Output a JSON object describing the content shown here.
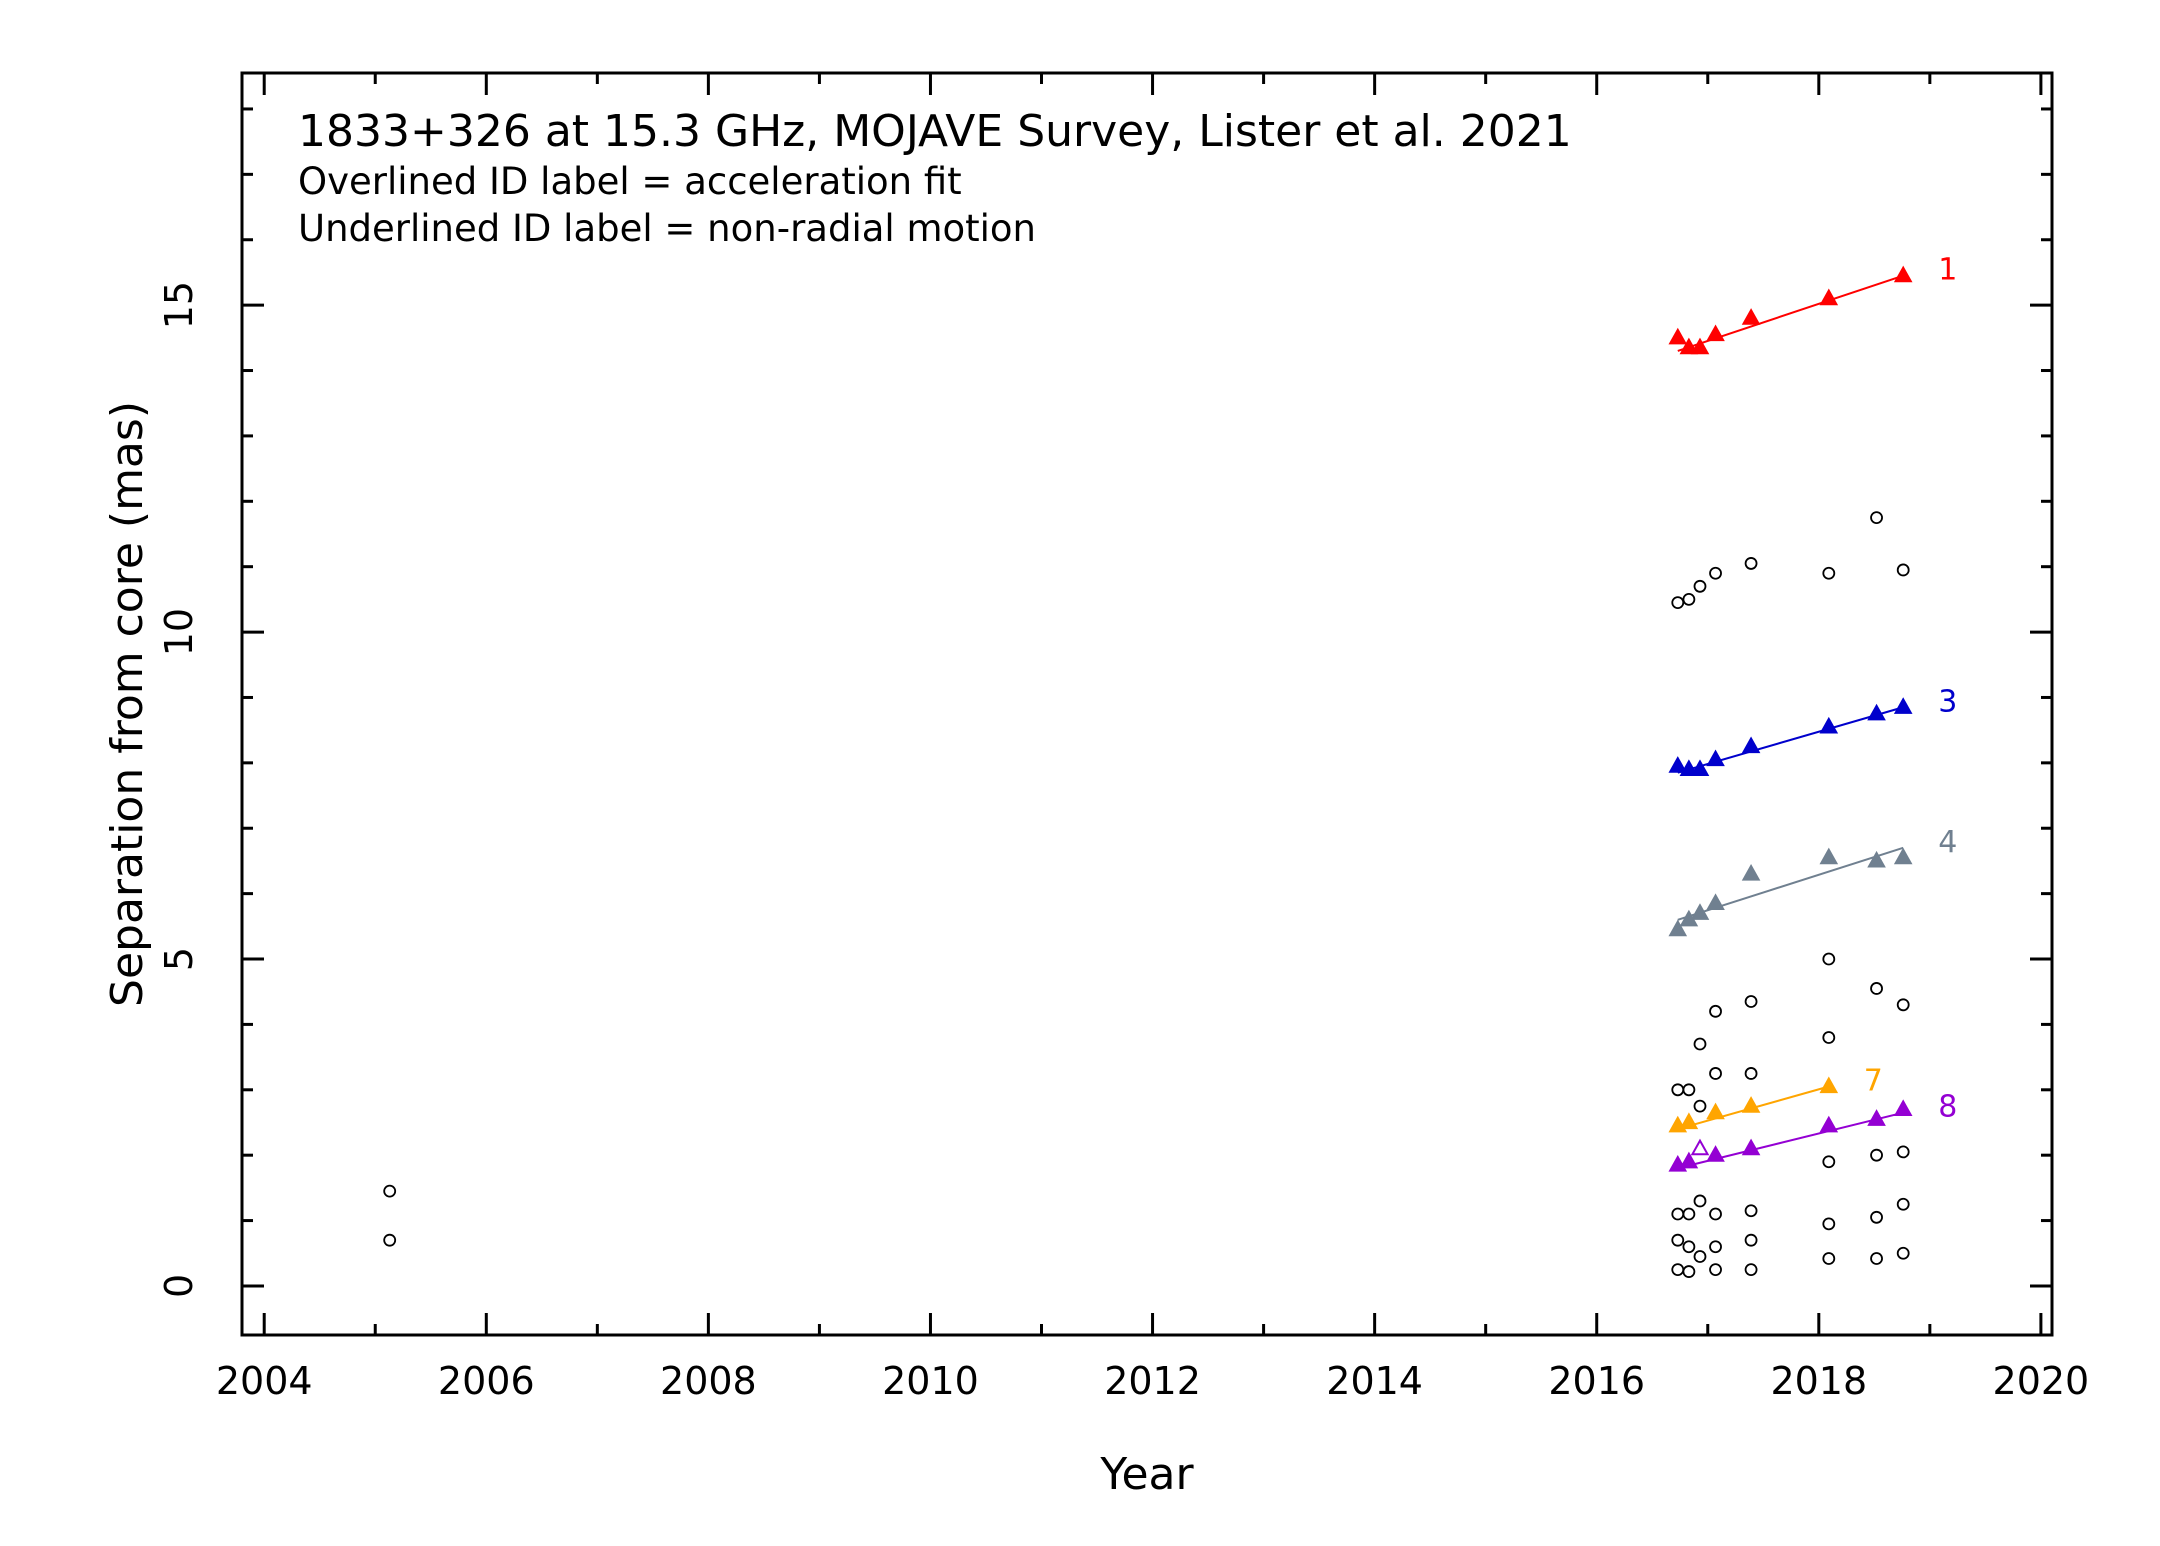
{
  "chart_data": {
    "type": "scatter",
    "title": "1833+326 at 15.3 GHz, MOJAVE Survey, Lister et al. 2021",
    "annotations": [
      "Overlined ID label = acceleration fit",
      "Underlined ID label = non-radial motion"
    ],
    "xlabel": "Year",
    "ylabel": "Separation from core (mas)",
    "xlim": [
      2003.8,
      2020.1
    ],
    "ylim": [
      -0.75,
      18.55
    ],
    "xticks": [
      2004,
      2006,
      2008,
      2010,
      2012,
      2014,
      2016,
      2018,
      2020
    ],
    "yticks": [
      0,
      5,
      10,
      15
    ],
    "x_minor_step": 1,
    "y_minor_step": 1,
    "grid": false,
    "series": [
      {
        "name": "1",
        "color": "#ff0000",
        "marker": "filled-triangle",
        "x": [
          2016.73,
          2016.83,
          2016.93,
          2017.07,
          2017.39,
          2018.09,
          2018.76
        ],
        "y": [
          14.5,
          14.35,
          14.35,
          14.55,
          14.8,
          15.1,
          15.45
        ],
        "fit": [
          [
            2016.73,
            14.3
          ],
          [
            2018.76,
            15.45
          ]
        ]
      },
      {
        "name": "3",
        "color": "#0000cc",
        "marker": "filled-triangle",
        "x": [
          2016.73,
          2016.83,
          2016.93,
          2017.07,
          2017.39,
          2018.09,
          2018.52,
          2018.76
        ],
        "y": [
          7.95,
          7.9,
          7.9,
          8.05,
          8.25,
          8.55,
          8.75,
          8.85
        ],
        "fit": [
          [
            2016.73,
            7.85
          ],
          [
            2018.76,
            8.85
          ]
        ]
      },
      {
        "name": "4",
        "color": "#708090",
        "marker": "filled-triangle",
        "x": [
          2016.73,
          2016.83,
          2016.93,
          2017.07,
          2017.39,
          2018.09,
          2018.52,
          2018.76
        ],
        "y": [
          5.45,
          5.6,
          5.7,
          5.85,
          6.3,
          6.55,
          6.5,
          6.55
        ],
        "fit": [
          [
            2016.73,
            5.6
          ],
          [
            2018.76,
            6.7
          ]
        ]
      },
      {
        "name": "7",
        "color": "#ffa500",
        "marker": "filled-triangle",
        "x": [
          2016.73,
          2016.83,
          2017.07,
          2017.39,
          2018.09
        ],
        "y": [
          2.45,
          2.5,
          2.65,
          2.75,
          3.05
        ],
        "fit": [
          [
            2016.73,
            2.4
          ],
          [
            2018.09,
            3.05
          ]
        ]
      },
      {
        "name": "8",
        "color": "#9400d3",
        "marker": "filled-triangle",
        "x": [
          2016.73,
          2016.83,
          2016.93,
          2017.07,
          2017.39,
          2018.09,
          2018.52,
          2018.76
        ],
        "y": [
          1.85,
          1.9,
          2.1,
          2.0,
          2.1,
          2.45,
          2.55,
          2.7
        ],
        "open_index": [
          2
        ],
        "fit": [
          [
            2016.73,
            1.8
          ],
          [
            2018.76,
            2.65
          ]
        ]
      }
    ],
    "unidentified": {
      "marker": "open-circle",
      "color": "#000000",
      "points": [
        [
          2005.13,
          1.45
        ],
        [
          2005.13,
          0.7
        ],
        [
          2016.73,
          10.45
        ],
        [
          2016.83,
          10.5
        ],
        [
          2016.93,
          10.7
        ],
        [
          2017.07,
          10.9
        ],
        [
          2017.39,
          11.05
        ],
        [
          2018.09,
          10.9
        ],
        [
          2018.52,
          11.75
        ],
        [
          2018.76,
          10.95
        ],
        [
          2016.73,
          3.0
        ],
        [
          2016.83,
          3.0
        ],
        [
          2016.93,
          3.7
        ],
        [
          2016.93,
          2.75
        ],
        [
          2017.07,
          4.2
        ],
        [
          2017.07,
          3.25
        ],
        [
          2017.39,
          4.35
        ],
        [
          2017.39,
          3.25
        ],
        [
          2018.09,
          5.0
        ],
        [
          2018.09,
          3.8
        ],
        [
          2018.52,
          4.55
        ],
        [
          2018.76,
          4.3
        ],
        [
          2016.73,
          1.1
        ],
        [
          2016.73,
          0.7
        ],
        [
          2016.73,
          0.25
        ],
        [
          2016.83,
          1.1
        ],
        [
          2016.83,
          0.6
        ],
        [
          2016.83,
          0.22
        ],
        [
          2016.93,
          1.3
        ],
        [
          2016.93,
          0.45
        ],
        [
          2017.07,
          1.1
        ],
        [
          2017.07,
          0.6
        ],
        [
          2017.07,
          0.25
        ],
        [
          2017.39,
          1.15
        ],
        [
          2017.39,
          0.7
        ],
        [
          2017.39,
          0.25
        ],
        [
          2018.09,
          1.9
        ],
        [
          2018.09,
          0.95
        ],
        [
          2018.09,
          0.42
        ],
        [
          2018.52,
          2.0
        ],
        [
          2018.52,
          1.05
        ],
        [
          2018.52,
          0.42
        ],
        [
          2018.76,
          2.05
        ],
        [
          2018.76,
          1.25
        ],
        [
          2018.76,
          0.5
        ]
      ]
    }
  }
}
